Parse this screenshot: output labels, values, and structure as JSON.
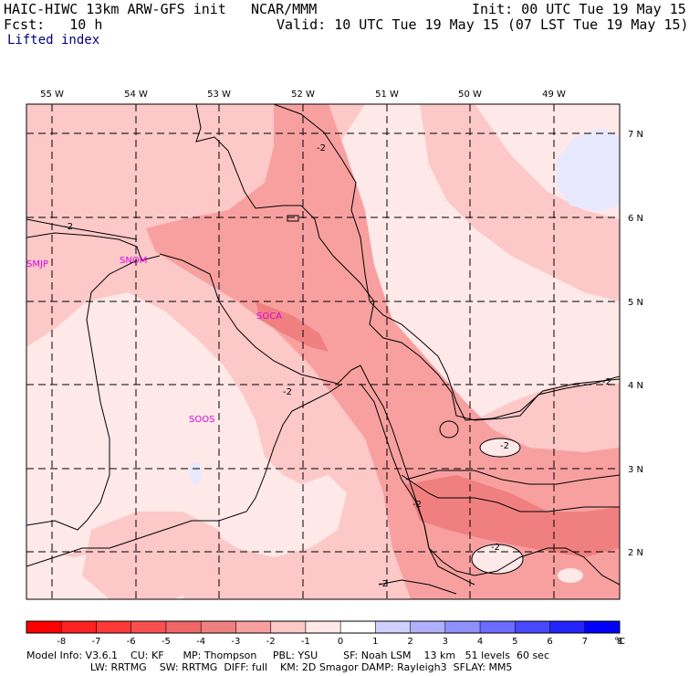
{
  "header": {
    "model": "HAIC-HIWC 13km ARW-GFS init",
    "org": "NCAR/MMM",
    "init": "Init: 00 UTC Tue 19 May 15",
    "fcst": "Fcst:   10 h",
    "valid": "Valid: 10 UTC Tue 19 May 15 (07 LST Tue 19 May 15)",
    "field": "Lifted index"
  },
  "axes": {
    "lon_labels": [
      "55 W",
      "54 W",
      "53 W",
      "52 W",
      "51 W",
      "50 W",
      "49 W"
    ],
    "lat_labels": [
      "7 N",
      "6 N",
      "5 N",
      "4 N",
      "3 N",
      "2 N"
    ]
  },
  "stations": [
    "SMJP",
    "SNOM",
    "SOCA",
    "SOOS"
  ],
  "contour_labels": [
    "-2",
    "-2",
    "-2",
    "-2",
    "-2",
    "-2",
    "-2",
    "-2"
  ],
  "colorbar": {
    "ticks": [
      "-8",
      "-7",
      "-6",
      "-5",
      "-4",
      "-3",
      "-2",
      "-1",
      "0",
      "1",
      "2",
      "3",
      "4",
      "5",
      "6",
      "7",
      "8"
    ],
    "unit": "°C",
    "colors": [
      "#ff0000",
      "#ff2020",
      "#ff3838",
      "#f85050",
      "#f06868",
      "#f08080",
      "#f8a0a0",
      "#fcc8c8",
      "#ffe8e8",
      "#ffffff",
      "#d0d0ff",
      "#b0b0ff",
      "#9090ff",
      "#6c6cff",
      "#4848ff",
      "#2424ff",
      "#0000ff"
    ]
  },
  "shading_colors": {
    "li_m1": "#ffe8e8",
    "li_m2": "#fcc8c8",
    "li_m3": "#f8a0a0",
    "li_m4": "#f08080",
    "li_p1": "#e8e8ff"
  },
  "footer": {
    "line1": "Model Info: V3.6.1    CU: KF      MP: Thompson     PBL: YSU        SF: Noah LSM    13 km   51 levels  60 sec",
    "line2": "                    LW: RRTMG    SW: RRTMG  DIFF: full    KM: 2D Smagor DAMP: Rayleigh3  SFLAY: MM5"
  }
}
